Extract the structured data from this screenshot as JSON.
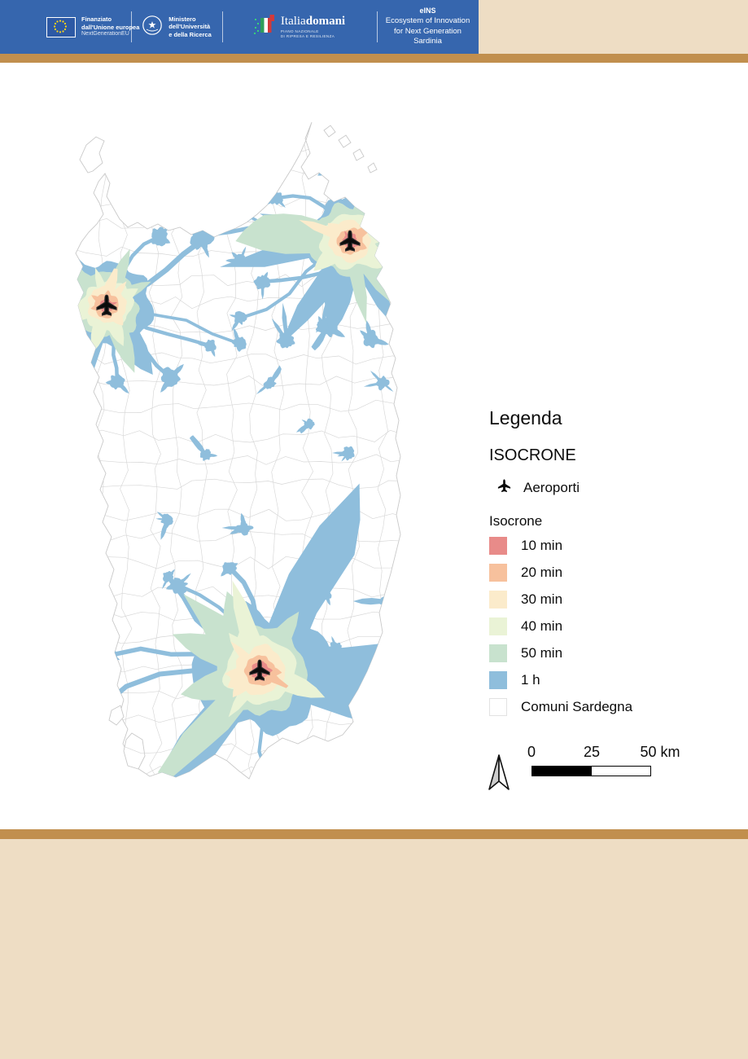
{
  "header": {
    "eu_logo": {
      "line1": "Finanziato",
      "line2": "dall'Unione europea",
      "line3": "NextGenerationEU"
    },
    "ministero": {
      "line1": "Ministero",
      "line2": "dell'Università",
      "line3": "e della Ricerca"
    },
    "italiadomani": {
      "brand_regular": "Italia",
      "brand_bold": "domani",
      "sub1": "PIANO NAZIONALE",
      "sub2": "DI RIPRESA E RESILIENZA"
    },
    "eins": {
      "line1": "eINS",
      "line2": "Ecosystem of Innovation",
      "line3": "for Next Generation",
      "line4": "Sardinia"
    }
  },
  "legend": {
    "title": "Legenda",
    "section": "ISOCRONE",
    "airports_label": "Aeroporti",
    "group_label": "Isocrone",
    "classes": [
      {
        "label": "10 min",
        "color": "#e88b89"
      },
      {
        "label": "20 min",
        "color": "#f7c19d"
      },
      {
        "label": "30 min",
        "color": "#fbebcb"
      },
      {
        "label": "40 min",
        "color": "#eaf3d6"
      },
      {
        "label": "50 min",
        "color": "#c8e2ce"
      },
      {
        "label": "1 h",
        "color": "#8fbedc"
      },
      {
        "label": "Comuni Sardegna",
        "color": "#ffffff",
        "border": "#e2e2e2"
      }
    ]
  },
  "scalebar": {
    "ticks": [
      "0",
      "25",
      "50 km"
    ]
  },
  "map": {
    "region": "Sardinia",
    "airports_count": 3,
    "boundary_color": "#c9c9c9",
    "mesh_color": "#d4d4d4"
  },
  "theme": {
    "header_blue": "#3666ae",
    "band_tan": "#c18f4e",
    "panel_beige": "#eeddc4"
  }
}
